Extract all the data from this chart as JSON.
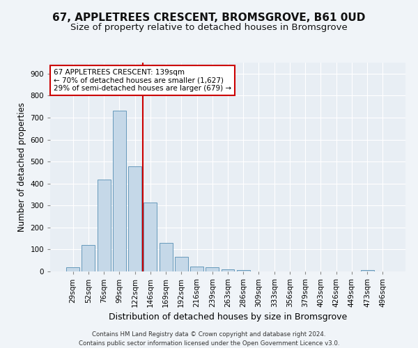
{
  "title": "67, APPLETREES CRESCENT, BROMSGROVE, B61 0UD",
  "subtitle": "Size of property relative to detached houses in Bromsgrove",
  "xlabel": "Distribution of detached houses by size in Bromsgrove",
  "ylabel": "Number of detached properties",
  "categories": [
    "29sqm",
    "52sqm",
    "76sqm",
    "99sqm",
    "122sqm",
    "146sqm",
    "169sqm",
    "192sqm",
    "216sqm",
    "239sqm",
    "263sqm",
    "286sqm",
    "309sqm",
    "333sqm",
    "356sqm",
    "379sqm",
    "403sqm",
    "426sqm",
    "449sqm",
    "473sqm",
    "496sqm"
  ],
  "values": [
    18,
    120,
    418,
    730,
    478,
    315,
    130,
    65,
    22,
    18,
    10,
    7,
    0,
    0,
    0,
    0,
    0,
    0,
    0,
    7,
    0
  ],
  "bar_color": "#c5d8e8",
  "bar_edge_color": "#6699bb",
  "vline_x": 4.5,
  "vline_color": "#cc0000",
  "annotation_text": "67 APPLETREES CRESCENT: 139sqm\n← 70% of detached houses are smaller (1,627)\n29% of semi-detached houses are larger (679) →",
  "annotation_box_color": "#ffffff",
  "annotation_box_edge": "#cc0000",
  "ylim": [
    0,
    950
  ],
  "yticks": [
    0,
    100,
    200,
    300,
    400,
    500,
    600,
    700,
    800,
    900
  ],
  "title_fontsize": 11,
  "subtitle_fontsize": 9.5,
  "xlabel_fontsize": 9,
  "ylabel_fontsize": 8.5,
  "tick_fontsize": 7.5,
  "footer_text": "Contains HM Land Registry data © Crown copyright and database right 2024.\nContains public sector information licensed under the Open Government Licence v3.0.",
  "background_color": "#f0f4f8",
  "plot_bg_color": "#e8eef4"
}
